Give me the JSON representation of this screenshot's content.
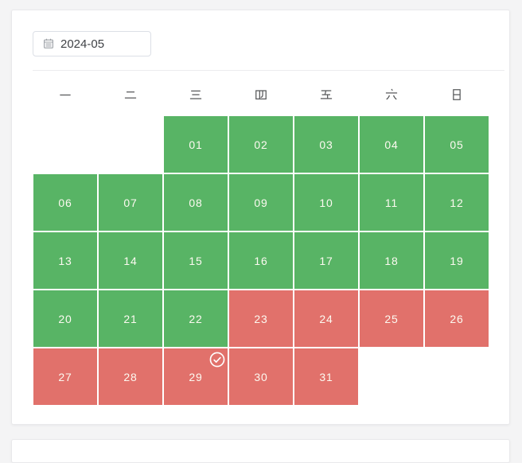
{
  "date_picker": {
    "value": "2024-05",
    "icon": "calendar-icon"
  },
  "calendar": {
    "weekdays": [
      "一",
      "二",
      "三",
      "四",
      "五",
      "六",
      "日"
    ],
    "first_day_column": 3,
    "status_colors": {
      "available": "#58b465",
      "unavailable": "#e1716b"
    },
    "checked_icon": "check-circle-icon",
    "days": [
      {
        "label": "01",
        "status": "available"
      },
      {
        "label": "02",
        "status": "available"
      },
      {
        "label": "03",
        "status": "available"
      },
      {
        "label": "04",
        "status": "available"
      },
      {
        "label": "05",
        "status": "available"
      },
      {
        "label": "06",
        "status": "available"
      },
      {
        "label": "07",
        "status": "available"
      },
      {
        "label": "08",
        "status": "available"
      },
      {
        "label": "09",
        "status": "available"
      },
      {
        "label": "10",
        "status": "available"
      },
      {
        "label": "11",
        "status": "available"
      },
      {
        "label": "12",
        "status": "available"
      },
      {
        "label": "13",
        "status": "available"
      },
      {
        "label": "14",
        "status": "available"
      },
      {
        "label": "15",
        "status": "available"
      },
      {
        "label": "16",
        "status": "available"
      },
      {
        "label": "17",
        "status": "available"
      },
      {
        "label": "18",
        "status": "available"
      },
      {
        "label": "19",
        "status": "available"
      },
      {
        "label": "20",
        "status": "available"
      },
      {
        "label": "21",
        "status": "available"
      },
      {
        "label": "22",
        "status": "available"
      },
      {
        "label": "23",
        "status": "unavailable"
      },
      {
        "label": "24",
        "status": "unavailable"
      },
      {
        "label": "25",
        "status": "unavailable"
      },
      {
        "label": "26",
        "status": "unavailable"
      },
      {
        "label": "27",
        "status": "unavailable"
      },
      {
        "label": "28",
        "status": "unavailable"
      },
      {
        "label": "29",
        "status": "unavailable",
        "checked": true
      },
      {
        "label": "30",
        "status": "unavailable"
      },
      {
        "label": "31",
        "status": "unavailable"
      }
    ]
  }
}
